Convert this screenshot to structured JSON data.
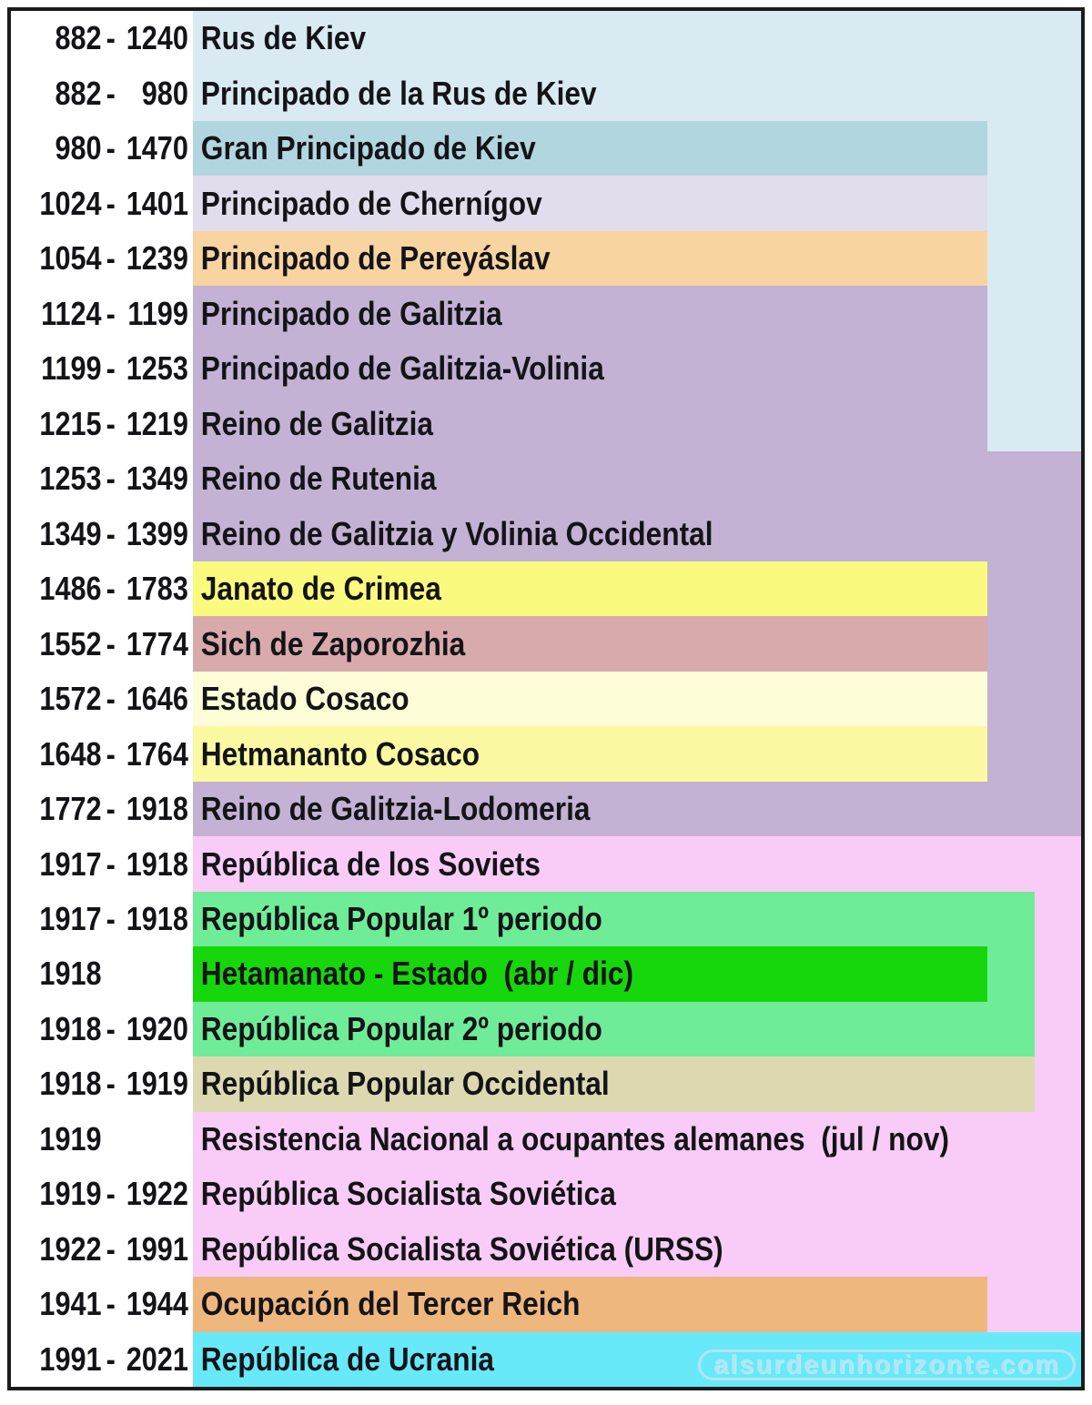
{
  "palette": {
    "lightblue": "#d9eaf3",
    "teal": "#b2d6e0",
    "lavender": "#e1ddec",
    "peach": "#f8d4a1",
    "purple": "#c3b2d3",
    "yellow": "#fafa7e",
    "rose": "#d8aaac",
    "cream": "#fdfdd8",
    "yellow2": "#fbf9a1",
    "pink": "#f8ccf6",
    "springgreen": "#6fec98",
    "brightgreen": "#16d60c",
    "khaki": "#dcd9b1",
    "orange": "#eeb77e",
    "cyan": "#67e9f9",
    "frame_border": "#1b1b1b",
    "text": "#141418",
    "watermark": "#b4e4f4"
  },
  "layout": {
    "extents": {
      "short": 873,
      "medium": 925,
      "full": 976
    }
  },
  "watermark": {
    "text": "alsurdeunhorizonte.com"
  },
  "rows": [
    {
      "start": "882",
      "sep": "-",
      "end": "1240",
      "name": "Rus de Kiev",
      "color": "lightblue",
      "extent": "full",
      "fillers": []
    },
    {
      "start": "882",
      "sep": "-",
      "end": "980",
      "name": "Principado de la Rus de Kiev",
      "color": "lightblue",
      "extent": "full",
      "fillers": []
    },
    {
      "start": "980",
      "sep": "-",
      "end": "1470",
      "name": "Gran Principado de Kiev",
      "color": "teal",
      "extent": "short",
      "fillers": [
        {
          "color": "lightblue"
        }
      ]
    },
    {
      "start": "1024",
      "sep": "-",
      "end": "1401",
      "name": "Principado de Chernígov",
      "color": "lavender",
      "extent": "short",
      "fillers": [
        {
          "color": "lightblue"
        }
      ]
    },
    {
      "start": "1054",
      "sep": "-",
      "end": "1239",
      "name": "Principado de Pereyáslav",
      "color": "peach",
      "extent": "short",
      "fillers": [
        {
          "color": "lightblue"
        }
      ]
    },
    {
      "start": "1124",
      "sep": "-",
      "end": "1199",
      "name": "Principado de Galitzia",
      "color": "purple",
      "extent": "short",
      "fillers": [
        {
          "color": "lightblue"
        }
      ]
    },
    {
      "start": "1199",
      "sep": "-",
      "end": "1253",
      "name": "Principado de Galitzia-Volinia",
      "color": "purple",
      "extent": "short",
      "fillers": [
        {
          "color": "lightblue"
        }
      ]
    },
    {
      "start": "1215",
      "sep": "-",
      "end": "1219",
      "name": "Reino de Galitzia",
      "color": "purple",
      "extent": "short",
      "fillers": [
        {
          "color": "lightblue"
        }
      ]
    },
    {
      "start": "1253",
      "sep": "-",
      "end": "1349",
      "name": "Reino de Rutenia",
      "color": "purple",
      "extent": "full",
      "fillers": []
    },
    {
      "start": "1349",
      "sep": "-",
      "end": "1399",
      "name": "Reino de Galitzia y Volinia Occidental",
      "color": "purple",
      "extent": "full",
      "fillers": []
    },
    {
      "start": "1486",
      "sep": "-",
      "end": "1783",
      "name": "Janato de Crimea",
      "color": "yellow",
      "extent": "short",
      "fillers": [
        {
          "color": "purple"
        }
      ]
    },
    {
      "start": "1552",
      "sep": "-",
      "end": "1774",
      "name": "Sich de Zaporozhia",
      "color": "rose",
      "extent": "short",
      "fillers": [
        {
          "color": "purple"
        }
      ]
    },
    {
      "start": "1572",
      "sep": "-",
      "end": "1646",
      "name": "Estado Cosaco",
      "color": "cream",
      "extent": "short",
      "fillers": [
        {
          "color": "purple"
        }
      ]
    },
    {
      "start": "1648",
      "sep": "-",
      "end": "1764",
      "name": "Hetmananto Cosaco",
      "color": "yellow2",
      "extent": "short",
      "fillers": [
        {
          "color": "purple"
        }
      ]
    },
    {
      "start": "1772",
      "sep": "-",
      "end": "1918",
      "name": "Reino de Galitzia-Lodomeria",
      "color": "purple",
      "extent": "full",
      "fillers": []
    },
    {
      "start": "1917",
      "sep": "-",
      "end": "1918",
      "name": "República de los Soviets",
      "color": "pink",
      "extent": "full",
      "fillers": []
    },
    {
      "start": "1917",
      "sep": "-",
      "end": "1918",
      "name": "República Popular 1º periodo",
      "color": "springgreen",
      "extent": "medium",
      "fillers": [
        {
          "color": "pink"
        }
      ]
    },
    {
      "start": "1918",
      "sep": "",
      "end": "",
      "name": "Hetamanato - Estado  (abr / dic)",
      "color": "brightgreen",
      "extent": "short",
      "fillers": [
        {
          "color": "springgreen",
          "width": 52
        },
        {
          "color": "pink"
        }
      ]
    },
    {
      "start": "1918",
      "sep": "-",
      "end": "1920",
      "name": "República Popular 2º periodo",
      "color": "springgreen",
      "extent": "medium",
      "fillers": [
        {
          "color": "pink"
        }
      ]
    },
    {
      "start": "1918",
      "sep": "-",
      "end": "1919",
      "name": "República Popular Occidental",
      "color": "khaki",
      "extent": "medium",
      "fillers": [
        {
          "color": "pink"
        }
      ]
    },
    {
      "start": "1919",
      "sep": "",
      "end": "",
      "name": "Resistencia Nacional a ocupantes alemanes  (jul / nov)",
      "color": "pink",
      "extent": "full",
      "fillers": []
    },
    {
      "start": "1919",
      "sep": "-",
      "end": "1922",
      "name": "República Socialista Soviética",
      "color": "pink",
      "extent": "full",
      "fillers": []
    },
    {
      "start": "1922",
      "sep": "-",
      "end": "1991",
      "name": "República Socialista Soviética (URSS)",
      "color": "pink",
      "extent": "full",
      "fillers": []
    },
    {
      "start": "1941",
      "sep": "-",
      "end": "1944",
      "name": "Ocupación del Tercer Reich",
      "color": "orange",
      "extent": "short",
      "fillers": [
        {
          "color": "pink"
        }
      ]
    },
    {
      "start": "1991",
      "sep": "-",
      "end": "2021",
      "name": "República de Ucrania",
      "color": "cyan",
      "extent": "full",
      "fillers": []
    }
  ],
  "chart_data": {
    "type": "timeline",
    "title": "",
    "unit": "years",
    "rows": [
      {
        "start": 882,
        "end": 1240,
        "label": "Rus de Kiev"
      },
      {
        "start": 882,
        "end": 980,
        "label": "Principado de la Rus de Kiev"
      },
      {
        "start": 980,
        "end": 1470,
        "label": "Gran Principado de Kiev"
      },
      {
        "start": 1024,
        "end": 1401,
        "label": "Principado de Chernígov"
      },
      {
        "start": 1054,
        "end": 1239,
        "label": "Principado de Pereyáslav"
      },
      {
        "start": 1124,
        "end": 1199,
        "label": "Principado de Galitzia"
      },
      {
        "start": 1199,
        "end": 1253,
        "label": "Principado de Galitzia-Volinia"
      },
      {
        "start": 1215,
        "end": 1219,
        "label": "Reino de Galitzia"
      },
      {
        "start": 1253,
        "end": 1349,
        "label": "Reino de Rutenia"
      },
      {
        "start": 1349,
        "end": 1399,
        "label": "Reino de Galitzia y Volinia Occidental"
      },
      {
        "start": 1486,
        "end": 1783,
        "label": "Janato de Crimea"
      },
      {
        "start": 1552,
        "end": 1774,
        "label": "Sich de Zaporozhia"
      },
      {
        "start": 1572,
        "end": 1646,
        "label": "Estado Cosaco"
      },
      {
        "start": 1648,
        "end": 1764,
        "label": "Hetmananto Cosaco"
      },
      {
        "start": 1772,
        "end": 1918,
        "label": "Reino de Galitzia-Lodomeria"
      },
      {
        "start": 1917,
        "end": 1918,
        "label": "República de los Soviets"
      },
      {
        "start": 1917,
        "end": 1918,
        "label": "República Popular 1º periodo"
      },
      {
        "start": 1918,
        "end": null,
        "label": "Hetamanato - Estado",
        "note": "abr / dic"
      },
      {
        "start": 1918,
        "end": 1920,
        "label": "República Popular 2º periodo"
      },
      {
        "start": 1918,
        "end": 1919,
        "label": "República Popular Occidental"
      },
      {
        "start": 1919,
        "end": null,
        "label": "Resistencia Nacional a ocupantes alemanes",
        "note": "jul / nov"
      },
      {
        "start": 1919,
        "end": 1922,
        "label": "República Socialista Soviética"
      },
      {
        "start": 1922,
        "end": 1991,
        "label": "República Socialista Soviética (URSS)"
      },
      {
        "start": 1941,
        "end": 1944,
        "label": "Ocupación del Tercer Reich"
      },
      {
        "start": 1991,
        "end": 2021,
        "label": "República de Ucrania"
      }
    ]
  }
}
